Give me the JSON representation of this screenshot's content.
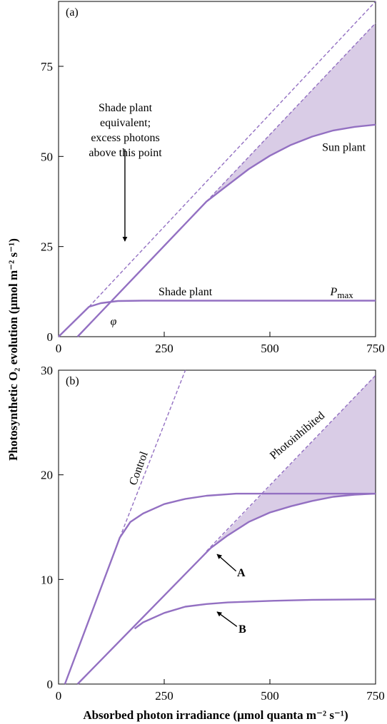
{
  "colors": {
    "curve": "#9370c2",
    "fill": "#d9cce6",
    "axis": "#000000"
  },
  "axes": {
    "xlabel": "Absorbed photon irradiance (µmol quanta m⁻² s⁻¹)",
    "ylabel": "Photosynthetic O₂ evolution (µmol m⁻² s⁻¹)"
  },
  "chart_data": [
    {
      "type": "line",
      "panel_label": "(a)",
      "xlim": [
        0,
        750
      ],
      "ylim": [
        0,
        93
      ],
      "x_ticks": [
        0,
        250,
        500,
        750
      ],
      "y_ticks": [
        0,
        25,
        50,
        75
      ],
      "x_tick_labels": [
        "0",
        "250",
        "500",
        "750"
      ],
      "y_tick_labels": [
        "0",
        "25",
        "50",
        "75"
      ],
      "series": [
        {
          "style": "solid",
          "points": [
            [
              0,
              0
            ],
            [
              72,
              8.3
            ],
            [
              100,
              9.3
            ],
            [
              140,
              9.9
            ],
            [
              200,
              10
            ],
            [
              750,
              10
            ]
          ]
        },
        {
          "style": "dashed",
          "points": [
            [
              72,
              8.3
            ],
            [
              750,
              93
            ]
          ]
        },
        {
          "style": "solid",
          "points": [
            [
              45,
              0
            ],
            [
              350,
              37.5
            ],
            [
              400,
              42
            ],
            [
              450,
              46.5
            ],
            [
              500,
              50.2
            ],
            [
              550,
              53.2
            ],
            [
              600,
              55.5
            ],
            [
              650,
              57.2
            ],
            [
              700,
              58.2
            ],
            [
              750,
              58.8
            ]
          ]
        },
        {
          "style": "dashed",
          "points": [
            [
              350,
              37.5
            ],
            [
              750,
              87
            ]
          ]
        }
      ],
      "shaded_region": {
        "upper": [
          [
            350,
            37.5
          ],
          [
            750,
            87
          ]
        ],
        "lower": [
          [
            350,
            37.5
          ],
          [
            400,
            42
          ],
          [
            450,
            46.5
          ],
          [
            500,
            50.2
          ],
          [
            550,
            53.2
          ],
          [
            600,
            55.5
          ],
          [
            650,
            57.2
          ],
          [
            700,
            58.2
          ],
          [
            750,
            58.8
          ]
        ]
      },
      "annotations": [
        {
          "text": "Shade plant",
          "x": 300,
          "y": 11.5
        },
        {
          "text": "Sun plant",
          "x": 675,
          "y": 51.5
        },
        {
          "text": "φ",
          "x": 130,
          "y": 3.3
        },
        {
          "text": "P",
          "sub": "max",
          "x": 670,
          "y": 11.5
        },
        {
          "lines": [
            "Shade plant",
            "equivalent;",
            "excess photons",
            "above this point"
          ],
          "x": 158,
          "y": 62.5
        }
      ],
      "arrow": {
        "from": [
          157,
          52
        ],
        "to": [
          157,
          26.5
        ]
      }
    },
    {
      "type": "line",
      "panel_label": "(b)",
      "xlim": [
        0,
        750
      ],
      "ylim": [
        0,
        30
      ],
      "x_ticks": [
        0,
        250,
        500,
        750
      ],
      "y_ticks": [
        0,
        10,
        20,
        30
      ],
      "x_tick_labels": [
        "0",
        "250",
        "500",
        "750"
      ],
      "y_tick_labels": [
        "0",
        "10",
        "20",
        "30"
      ],
      "series": [
        {
          "name": "Control",
          "style": "dashed",
          "points": [
            [
              145,
              14
            ],
            [
              300,
              30
            ]
          ]
        },
        {
          "style": "solid",
          "points": [
            [
              15,
              0
            ],
            [
              145,
              14
            ],
            [
              170,
              15.5
            ],
            [
              200,
              16.3
            ],
            [
              250,
              17.2
            ],
            [
              300,
              17.7
            ],
            [
              350,
              18
            ],
            [
              420,
              18.2
            ],
            [
              750,
              18.2
            ]
          ]
        },
        {
          "style": "solid",
          "points": [
            [
              45,
              0
            ],
            [
              360,
              13
            ],
            [
              400,
              14.2
            ],
            [
              450,
              15.5
            ],
            [
              500,
              16.4
            ],
            [
              550,
              17
            ],
            [
              600,
              17.5
            ],
            [
              650,
              17.9
            ],
            [
              700,
              18.1
            ],
            [
              750,
              18.2
            ]
          ]
        },
        {
          "name": "Photoinhibited",
          "style": "dashed",
          "points": [
            [
              350,
              12.7
            ],
            [
              750,
              29.5
            ]
          ]
        },
        {
          "style": "solid",
          "points": [
            [
              180,
              5.3
            ],
            [
              200,
              5.9
            ],
            [
              250,
              6.8
            ],
            [
              300,
              7.4
            ],
            [
              350,
              7.65
            ],
            [
              400,
              7.8
            ],
            [
              500,
              7.95
            ],
            [
              600,
              8.05
            ],
            [
              750,
              8.1
            ]
          ]
        }
      ],
      "shaded_region": {
        "upper": [
          [
            360,
            13
          ],
          [
            750,
            29.5
          ]
        ],
        "lower": [
          [
            360,
            13
          ],
          [
            400,
            14.2
          ],
          [
            450,
            15.5
          ],
          [
            500,
            16.4
          ],
          [
            550,
            17
          ],
          [
            600,
            17.5
          ],
          [
            650,
            17.9
          ],
          [
            700,
            18.1
          ],
          [
            750,
            18.2
          ]
        ]
      },
      "annotations": [
        {
          "text": "Control",
          "x": 197,
          "y": 20.5,
          "angle": -70
        },
        {
          "text": "Photoinhibited",
          "x": 570,
          "y": 23.5,
          "angle": -40
        },
        {
          "text": "A",
          "x": 432,
          "y": 10.3,
          "bold": true
        },
        {
          "text": "B",
          "x": 435,
          "y": 4.9,
          "bold": true
        }
      ],
      "arrows": [
        {
          "from": [
            420,
            10.8
          ],
          "to": [
            375,
            12.4
          ]
        },
        {
          "from": [
            422,
            5.5
          ],
          "to": [
            375,
            6.9
          ]
        }
      ]
    }
  ]
}
